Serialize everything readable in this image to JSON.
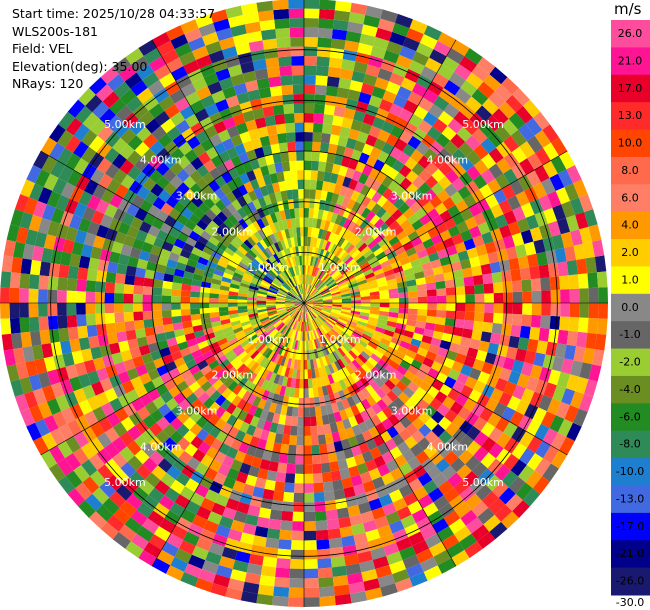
{
  "info": {
    "start_time": "Start time: 2025/10/28 04:33:57",
    "site": "WLS200s-181",
    "field": "Field: VEL",
    "elevation": "Elevation(deg): 35.00",
    "nrays": "NRays: 120"
  },
  "chart_data": {
    "type": "heatmap",
    "projection": "polar-ppi",
    "field": "VEL",
    "units": "m/s",
    "n_rays": 120,
    "elevation_deg": 35.0,
    "max_range_km": 6.0,
    "ring_labels": [
      "1.00km",
      "2.00km",
      "3.00km",
      "4.00km",
      "5.00km"
    ],
    "ring_ranges_km": [
      1,
      2,
      3,
      4,
      5
    ],
    "colorbar": {
      "ticks": [
        "26.0",
        "21.0",
        "17.0",
        "13.0",
        "10.0",
        "8.0",
        "6.0",
        "4.0",
        "2.0",
        "1.0",
        "0.0",
        "-1.0",
        "-2.0",
        "-4.0",
        "-6.0",
        "-8.0",
        "-10.0",
        "-13.0",
        "-17.0",
        "-21.0",
        "-26.0",
        "-30.0"
      ],
      "colors": [
        "#ff4d9e",
        "#ff1493",
        "#e8002a",
        "#ff2a2a",
        "#ff4500",
        "#ff6a4d",
        "#ff7f66",
        "#ff9900",
        "#ffcc00",
        "#ffff00",
        "#888888",
        "#666666",
        "#9acd32",
        "#6b8e23",
        "#228b22",
        "#2e8b57",
        "#1e7fd0",
        "#4169e1",
        "#0000ff",
        "#00008b",
        "#191970"
      ]
    }
  }
}
